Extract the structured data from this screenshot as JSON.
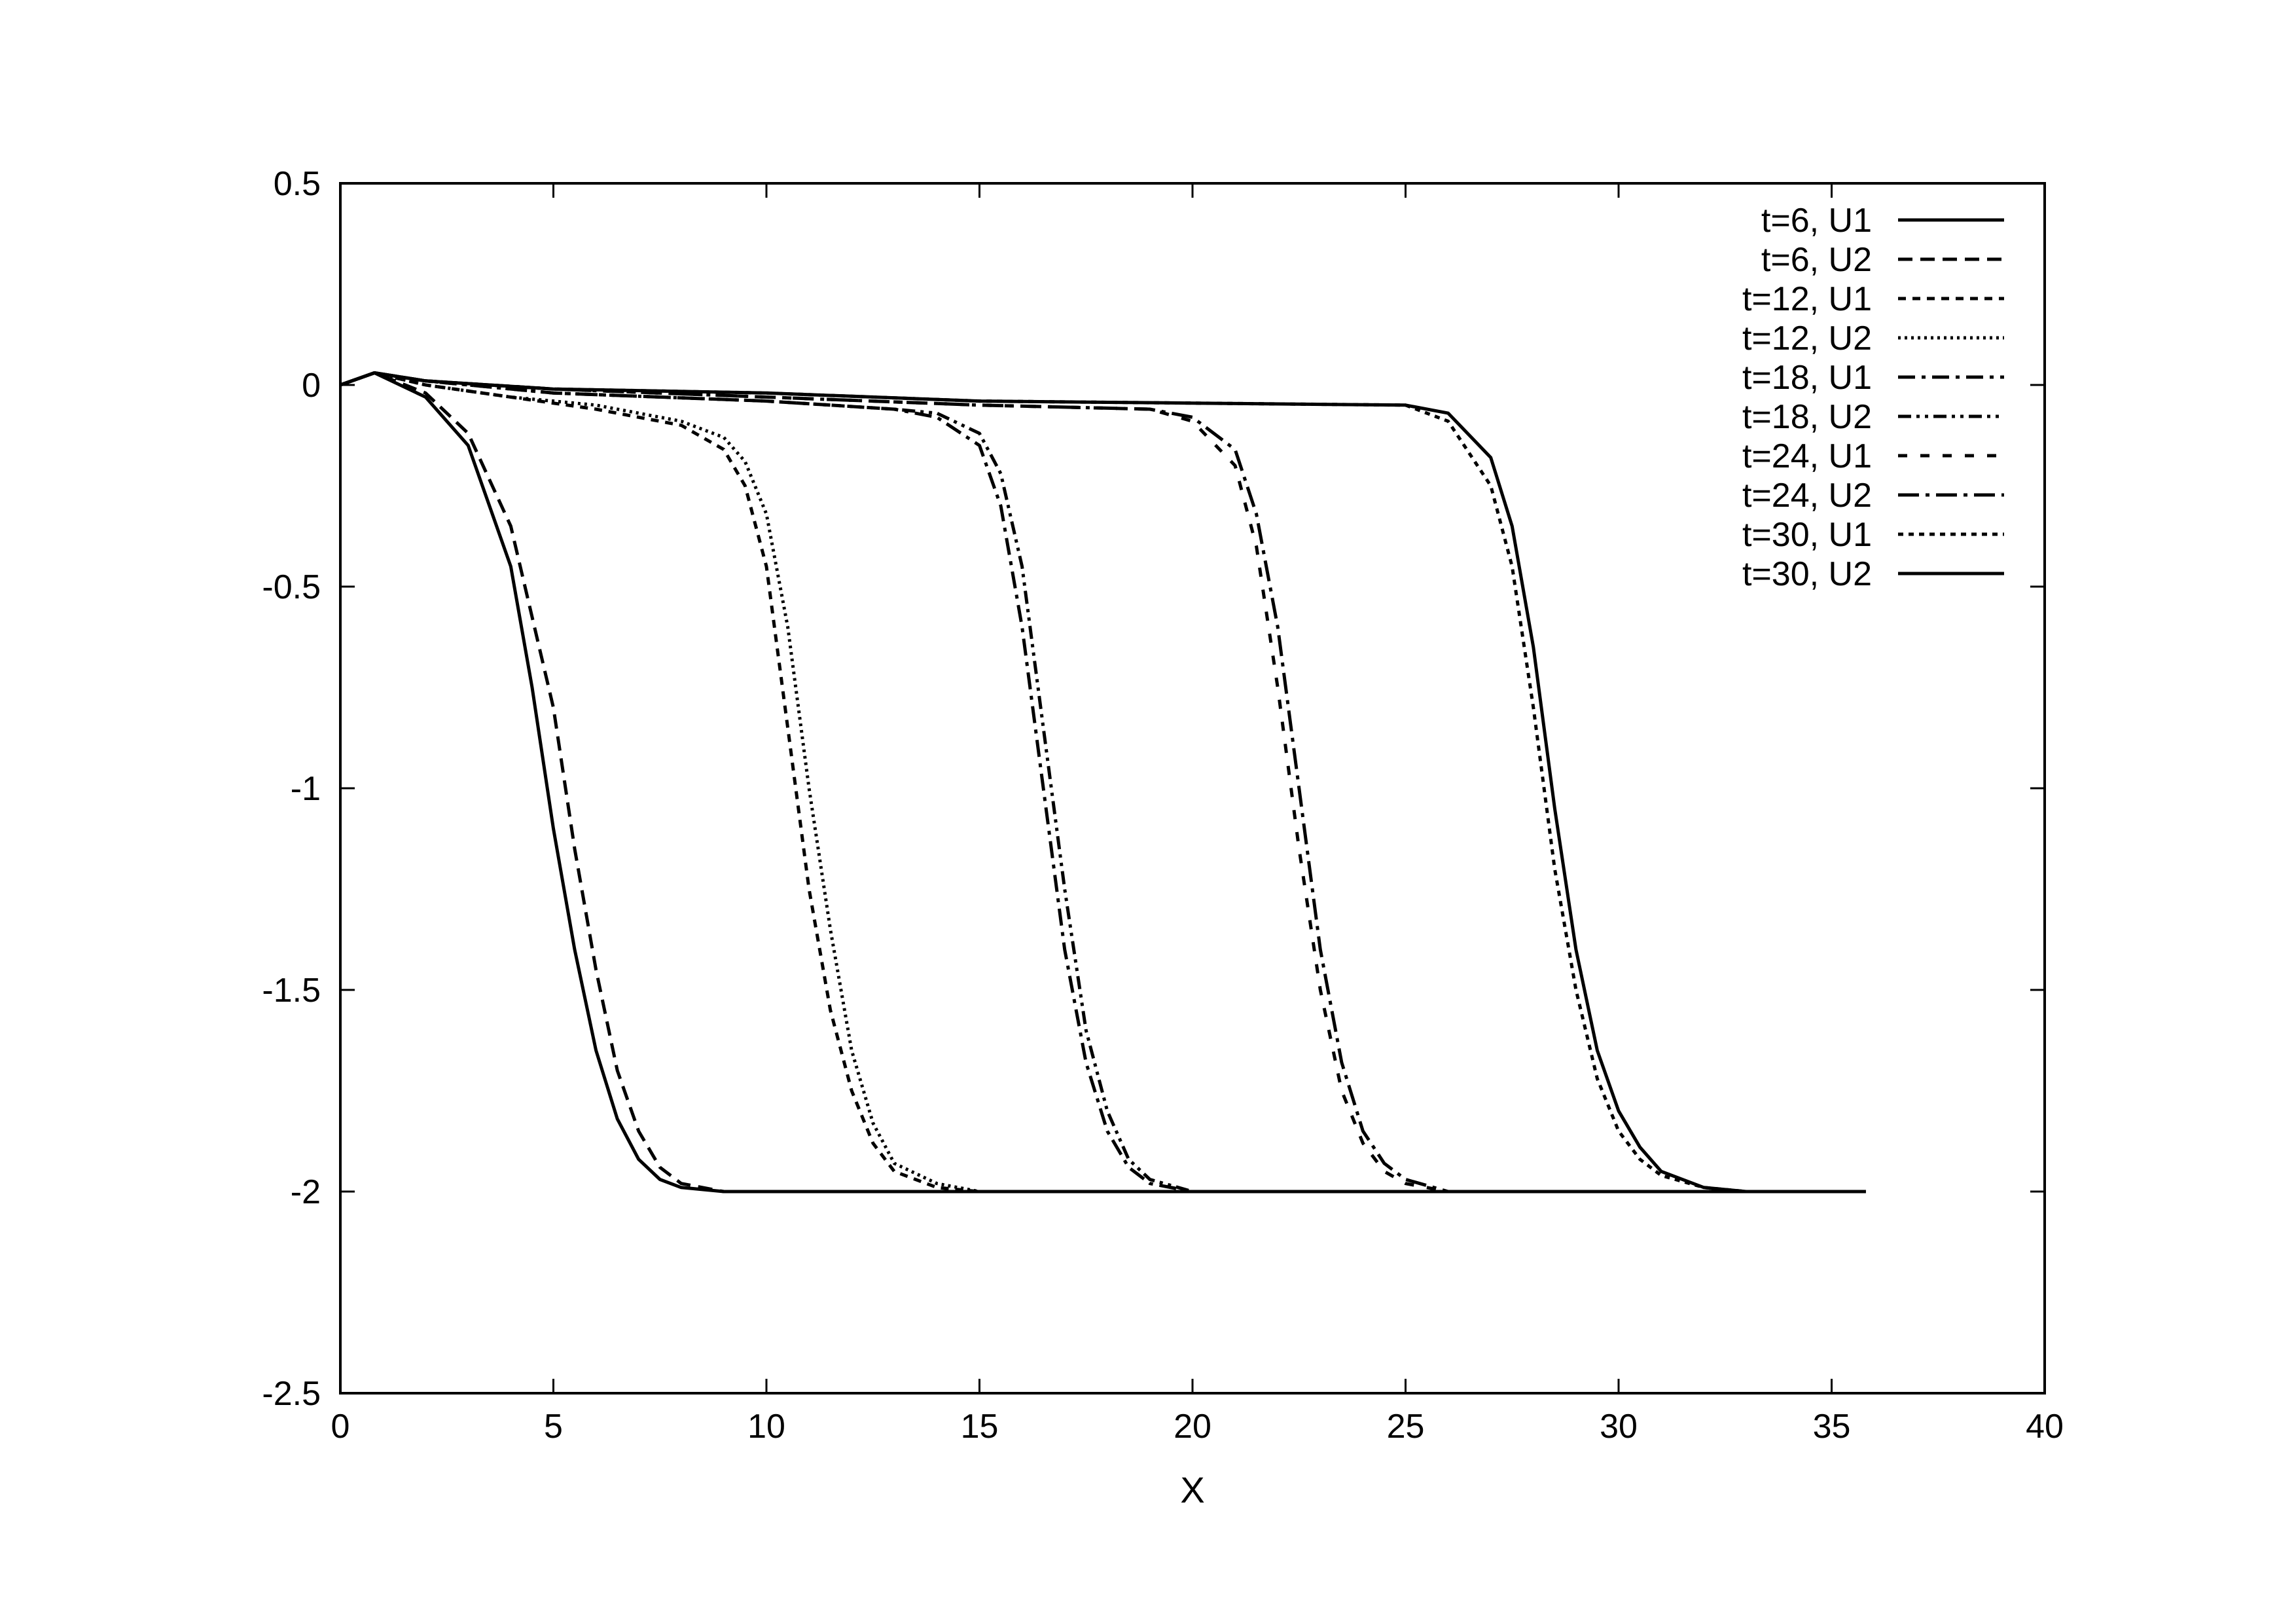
{
  "chart_data": {
    "type": "line",
    "title": "",
    "xlabel": "X",
    "ylabel": "",
    "xlim": [
      0,
      40
    ],
    "ylim": [
      -2.5,
      0.5
    ],
    "xticks": [
      "0",
      "5",
      "10",
      "15",
      "20",
      "25",
      "30",
      "35",
      "40"
    ],
    "yticks": [
      "0.5",
      "0",
      "-0.5",
      "-1",
      "-1.5",
      "-2",
      "-2.5"
    ],
    "legend_position": "top-right",
    "grid": false,
    "line_color": "#000000",
    "series": [
      {
        "name": "t=6,  U1",
        "dash": "solid",
        "x": [
          0,
          0.8,
          2,
          3,
          4,
          4.5,
          5,
          5.5,
          6,
          6.5,
          7,
          7.5,
          8,
          9,
          10,
          15,
          20,
          25,
          30,
          35.8
        ],
        "y": [
          0,
          0.03,
          -0.03,
          -0.15,
          -0.45,
          -0.75,
          -1.1,
          -1.4,
          -1.65,
          -1.82,
          -1.92,
          -1.97,
          -1.99,
          -2.0,
          -2.0,
          -2.0,
          -2.0,
          -2.0,
          -2.0,
          -2.0
        ]
      },
      {
        "name": "t=6,  U2",
        "dash": "dash",
        "x": [
          0,
          0.8,
          2,
          3,
          4,
          5,
          5.5,
          6,
          6.5,
          7,
          7.5,
          8,
          9,
          10,
          15,
          20,
          25,
          30,
          35.8
        ],
        "y": [
          0,
          0.03,
          -0.02,
          -0.12,
          -0.35,
          -0.8,
          -1.15,
          -1.45,
          -1.7,
          -1.85,
          -1.94,
          -1.98,
          -2.0,
          -2.0,
          -2.0,
          -2.0,
          -2.0,
          -2.0,
          -2.0
        ]
      },
      {
        "name": "t=12,  U1",
        "dash": "shortdash",
        "x": [
          0,
          0.8,
          2,
          4,
          6,
          8,
          9,
          9.5,
          10,
          10.5,
          11,
          11.5,
          12,
          12.5,
          13,
          14,
          15,
          20,
          25,
          30,
          35.8
        ],
        "y": [
          0,
          0.03,
          0.0,
          -0.03,
          -0.06,
          -0.1,
          -0.16,
          -0.25,
          -0.45,
          -0.85,
          -1.25,
          -1.55,
          -1.75,
          -1.88,
          -1.95,
          -1.99,
          -2.0,
          -2.0,
          -2.0,
          -2.0,
          -2.0
        ]
      },
      {
        "name": "t=12,  U2",
        "dash": "dot",
        "x": [
          0,
          0.8,
          2,
          4,
          6,
          8,
          9,
          9.5,
          10,
          10.5,
          11,
          11.5,
          12,
          12.5,
          13,
          14,
          15,
          20,
          25,
          30,
          35.8
        ],
        "y": [
          0,
          0.03,
          0.0,
          -0.03,
          -0.05,
          -0.09,
          -0.13,
          -0.19,
          -0.32,
          -0.6,
          -1.0,
          -1.35,
          -1.65,
          -1.83,
          -1.93,
          -1.98,
          -2.0,
          -2.0,
          -2.0,
          -2.0,
          -2.0
        ]
      },
      {
        "name": "t=18,  U1",
        "dash": "dashdot",
        "x": [
          0,
          0.8,
          2,
          5,
          10,
          13,
          14,
          15,
          15.5,
          16,
          16.5,
          17,
          17.5,
          18,
          18.5,
          19,
          20,
          25,
          30,
          35.8
        ],
        "y": [
          0,
          0.03,
          0.01,
          -0.02,
          -0.04,
          -0.06,
          -0.08,
          -0.15,
          -0.3,
          -0.6,
          -1.0,
          -1.4,
          -1.68,
          -1.85,
          -1.94,
          -1.98,
          -2.0,
          -2.0,
          -2.0,
          -2.0
        ]
      },
      {
        "name": "t=18,  U2",
        "dash": "dashdotdot",
        "x": [
          0,
          0.8,
          2,
          5,
          10,
          13,
          14,
          15,
          15.5,
          16,
          16.5,
          17,
          17.5,
          18,
          18.5,
          19,
          20,
          25,
          30,
          35.8
        ],
        "y": [
          0,
          0.03,
          0.01,
          -0.02,
          -0.04,
          -0.06,
          -0.07,
          -0.12,
          -0.22,
          -0.45,
          -0.85,
          -1.25,
          -1.6,
          -1.8,
          -1.92,
          -1.97,
          -2.0,
          -2.0,
          -2.0,
          -2.0
        ]
      },
      {
        "name": "t=24,  U1",
        "dash": "sparsedash",
        "x": [
          0,
          0.8,
          2,
          5,
          10,
          15,
          19,
          20,
          21,
          21.5,
          22,
          22.5,
          23,
          23.5,
          24,
          24.5,
          25,
          26,
          30,
          35.8
        ],
        "y": [
          0,
          0.03,
          0.01,
          -0.01,
          -0.03,
          -0.05,
          -0.06,
          -0.09,
          -0.2,
          -0.4,
          -0.75,
          -1.15,
          -1.5,
          -1.75,
          -1.88,
          -1.95,
          -1.98,
          -2.0,
          -2.0,
          -2.0
        ]
      },
      {
        "name": "t=24,  U2",
        "dash": "longdashdot",
        "x": [
          0,
          0.8,
          2,
          5,
          10,
          15,
          19,
          20,
          21,
          21.5,
          22,
          22.5,
          23,
          23.5,
          24,
          24.5,
          25,
          26,
          30,
          35.8
        ],
        "y": [
          0,
          0.03,
          0.01,
          -0.01,
          -0.03,
          -0.05,
          -0.06,
          -0.08,
          -0.16,
          -0.32,
          -0.6,
          -1.0,
          -1.4,
          -1.68,
          -1.85,
          -1.93,
          -1.97,
          -2.0,
          -2.0,
          -2.0
        ]
      },
      {
        "name": "t=30,  U1",
        "dash": "tightdash",
        "x": [
          0,
          0.8,
          2,
          5,
          10,
          15,
          20,
          25,
          26,
          27,
          27.5,
          28,
          28.5,
          29,
          29.5,
          30,
          30.5,
          31,
          32,
          33,
          35.8
        ],
        "y": [
          0,
          0.03,
          0.01,
          -0.01,
          -0.02,
          -0.04,
          -0.045,
          -0.05,
          -0.09,
          -0.25,
          -0.45,
          -0.8,
          -1.2,
          -1.5,
          -1.72,
          -1.85,
          -1.92,
          -1.96,
          -1.99,
          -2.0,
          -2.0
        ]
      },
      {
        "name": "t=30,  U2",
        "dash": "solid",
        "x": [
          0,
          0.8,
          2,
          5,
          10,
          15,
          20,
          25,
          26,
          27,
          27.5,
          28,
          28.5,
          29,
          29.5,
          30,
          30.5,
          31,
          32,
          33,
          35.8
        ],
        "y": [
          0,
          0.03,
          0.01,
          -0.01,
          -0.02,
          -0.04,
          -0.045,
          -0.05,
          -0.07,
          -0.18,
          -0.35,
          -0.65,
          -1.05,
          -1.4,
          -1.65,
          -1.8,
          -1.89,
          -1.95,
          -1.99,
          -2.0,
          -2.0
        ]
      }
    ]
  }
}
